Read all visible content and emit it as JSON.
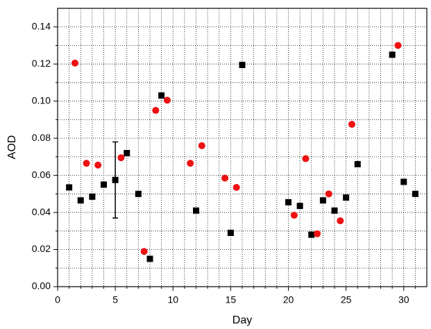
{
  "chart_data": {
    "type": "scatter",
    "x_label": "Day",
    "y_label": "AOD",
    "xlim": [
      0,
      32
    ],
    "ylim": [
      0,
      0.15
    ],
    "xticks": [
      0,
      5,
      10,
      15,
      20,
      25,
      30
    ],
    "yticks": [
      {
        "value": 0,
        "label": "0.00"
      },
      0.02,
      0.04,
      0.06,
      0.08,
      {
        "value": 0.1,
        "label": "0.10"
      },
      0.12,
      0.14
    ],
    "xminorticks": [
      1,
      2,
      3,
      4,
      6,
      7,
      8,
      9,
      11,
      12,
      13,
      14,
      16,
      17,
      18,
      19,
      21,
      22,
      23,
      24,
      26,
      27,
      28,
      29,
      31
    ],
    "yminorticks": [
      0.01,
      0.03,
      0.05,
      0.07,
      0.09,
      0.11,
      0.13
    ],
    "grid": true,
    "series": [
      {
        "marker": "square",
        "color": "#000000",
        "x": [
          1,
          2,
          3,
          4,
          5,
          6,
          7,
          8,
          9,
          12,
          15,
          16,
          20,
          21,
          22,
          23,
          24,
          25,
          26,
          29,
          30,
          31
        ],
        "values": [
          0.0535,
          0.0465,
          0.0485,
          0.055,
          0.0575,
          0.072,
          0.05,
          0.015,
          0.103,
          0.041,
          0.029,
          0.1195,
          0.0455,
          0.0435,
          0.028,
          0.0465,
          0.041,
          0.048,
          0.066,
          0.125,
          0.0565,
          0.05
        ],
        "errors": [
          null,
          null,
          null,
          null,
          0.0205,
          null,
          null,
          null,
          null,
          null,
          null,
          null,
          null,
          null,
          null,
          null,
          null,
          null,
          null,
          null,
          null,
          null
        ]
      },
      {
        "marker": "circle",
        "color": "#ee1111",
        "x": [
          1.5,
          2.5,
          3.5,
          5.5,
          7.5,
          8.5,
          9.5,
          11.5,
          12.5,
          14.5,
          15.5,
          20.5,
          21.5,
          22.5,
          23.5,
          24.5,
          25.5,
          29.5
        ],
        "values": [
          0.1205,
          0.0665,
          0.0655,
          0.0695,
          0.019,
          0.095,
          0.1005,
          0.0665,
          0.076,
          0.0585,
          0.0535,
          0.0385,
          0.069,
          0.0285,
          0.05,
          0.0355,
          0.0875,
          0.13
        ]
      }
    ]
  }
}
